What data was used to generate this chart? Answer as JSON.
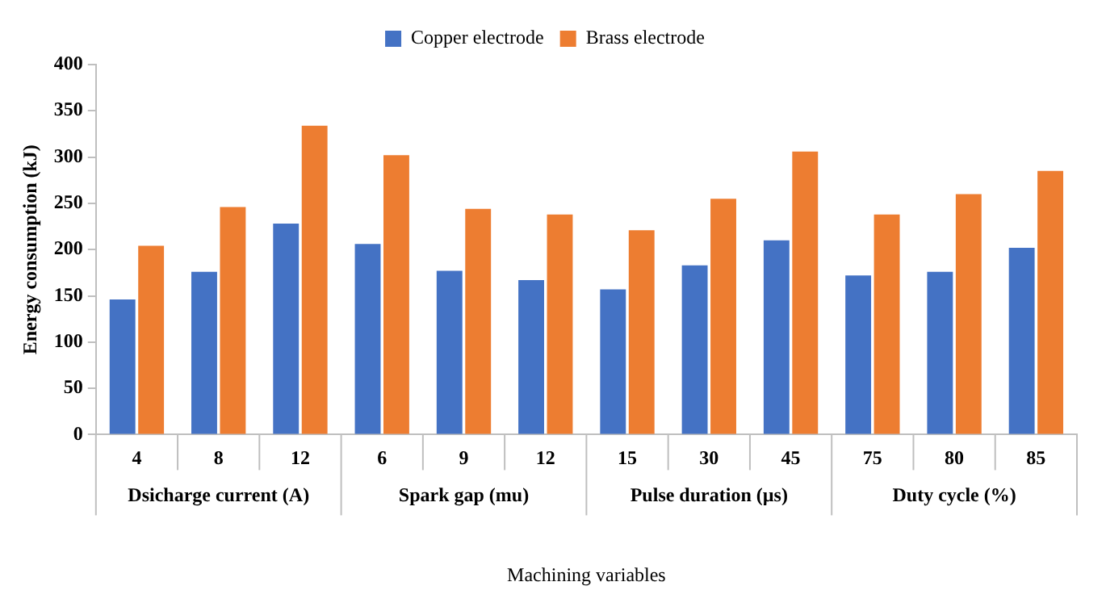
{
  "chart_data": {
    "type": "bar",
    "ylabel": "Energy consumption (kJ)",
    "xlabel": "Machining variables",
    "categories": [
      "4",
      "8",
      "12",
      "6",
      "9",
      "12",
      "15",
      "30",
      "45",
      "75",
      "80",
      "85"
    ],
    "series": [
      {
        "name": "Copper electrode",
        "color": "#4472c4",
        "values": [
          146,
          176,
          228,
          206,
          177,
          167,
          157,
          183,
          210,
          172,
          176,
          202
        ]
      },
      {
        "name": "Brass electrode",
        "color": "#ed7d31",
        "values": [
          204,
          246,
          334,
          302,
          244,
          238,
          221,
          255,
          306,
          238,
          260,
          285
        ]
      }
    ],
    "annotations": [
      "Dsicharge current (A)",
      "Spark gap (mu)",
      "Pulse duration (µs)",
      "Duty cycle (%)"
    ],
    "ylim": [
      0,
      400
    ],
    "yticks": [
      0,
      50,
      100,
      150,
      200,
      250,
      300,
      350,
      400
    ],
    "grid": false,
    "legend": "top"
  }
}
